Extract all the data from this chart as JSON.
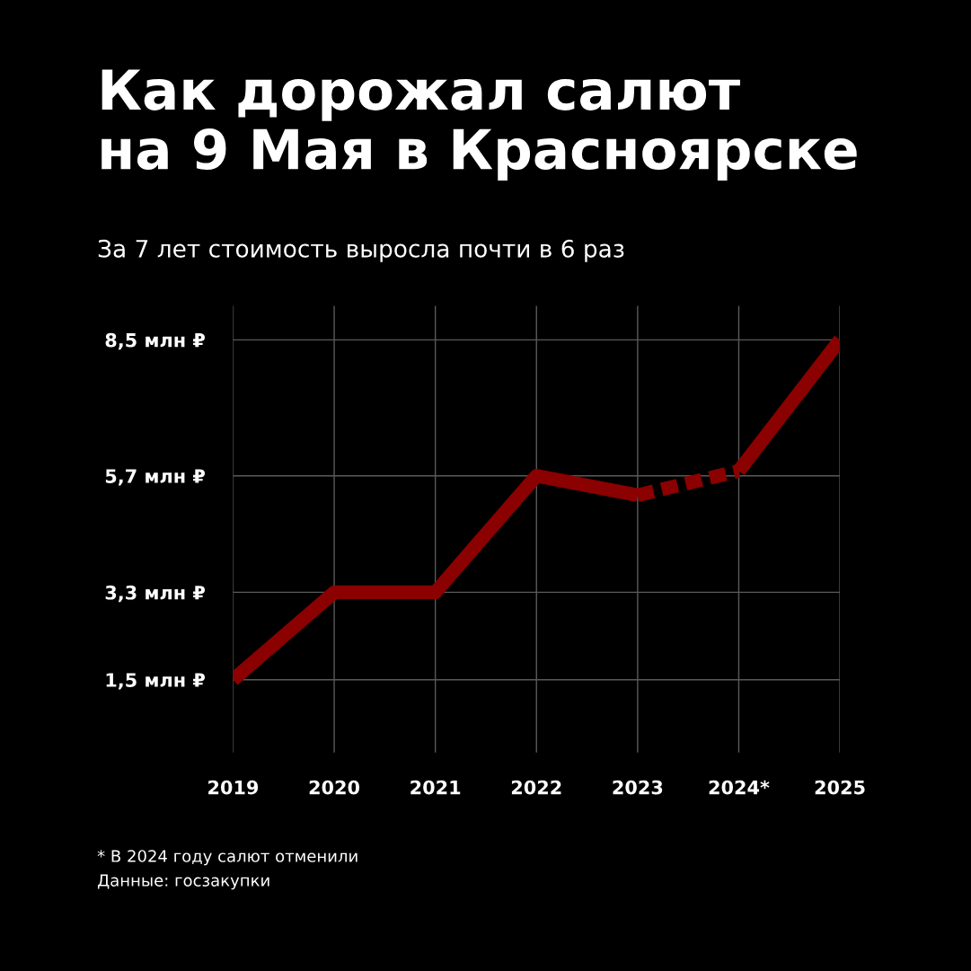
{
  "chart_data": {
    "type": "line",
    "title": "Как дорожал салют\nна 9 Мая в Красноярске",
    "subtitle": "За 7 лет стоимость выросла почти в 6 раз",
    "categories": [
      "2019",
      "2020",
      "2021",
      "2022",
      "2023",
      "2024*",
      "2025"
    ],
    "series": [
      {
        "color": "#8b0000",
        "line_style": "solid",
        "values": [
          1.5,
          3.3,
          3.3,
          5.7,
          5.3,
          null,
          null
        ]
      },
      {
        "color": "#8b0000",
        "line_style": "dashed",
        "values": [
          null,
          null,
          null,
          null,
          5.3,
          5.8,
          null
        ]
      },
      {
        "color": "#8b0000",
        "line_style": "solid",
        "values": [
          null,
          null,
          null,
          null,
          null,
          5.8,
          8.5
        ]
      }
    ],
    "ylim": [
      0,
      9.2
    ],
    "yticks": [
      {
        "value": 1.5,
        "label": "1,5 млн ₽"
      },
      {
        "value": 3.3,
        "label": "3,3 млн ₽"
      },
      {
        "value": 5.7,
        "label": "5,7 млн ₽"
      },
      {
        "value": 8.5,
        "label": "8,5 млн ₽"
      }
    ],
    "grid": true,
    "marker": "none",
    "annotations": [
      "* В 2024 году салют отменили",
      "Данные: госзакупки"
    ]
  }
}
